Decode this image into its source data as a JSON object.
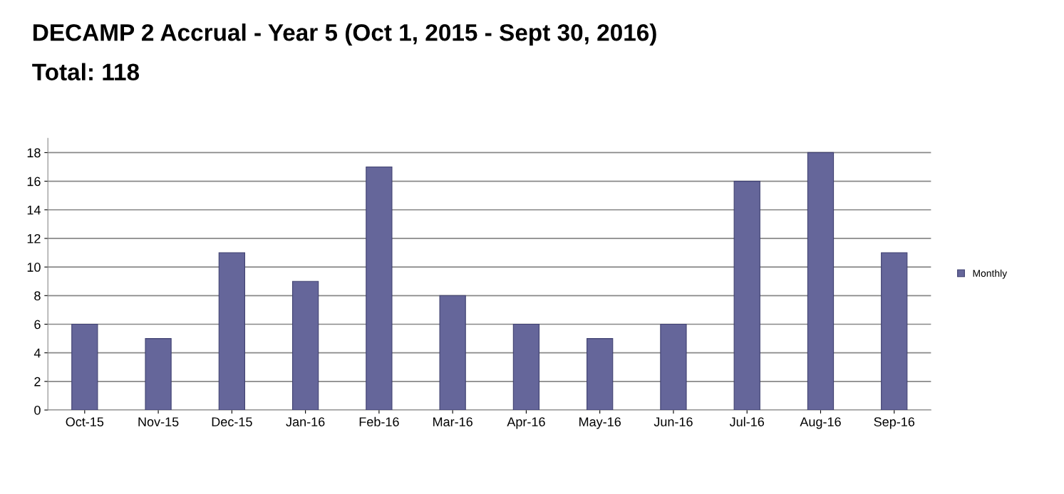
{
  "chart_data": {
    "type": "bar",
    "title": "DECAMP 2 Accrual - Year 5 (Oct 1, 2015 - Sept 30, 2016)",
    "subtitle": "Total: 118",
    "categories": [
      "Oct-15",
      "Nov-15",
      "Dec-15",
      "Jan-16",
      "Feb-16",
      "Mar-16",
      "Apr-16",
      "May-16",
      "Jun-16",
      "Jul-16",
      "Aug-16",
      "Sep-16"
    ],
    "series": [
      {
        "name": "Monthly",
        "color": "#65669a",
        "values": [
          6,
          5,
          11,
          9,
          17,
          8,
          6,
          5,
          6,
          16,
          18,
          11
        ]
      }
    ],
    "ylim": [
      0,
      19
    ],
    "yticks": [
      0,
      2,
      4,
      6,
      8,
      10,
      12,
      14,
      16,
      18
    ],
    "grid": "y",
    "legend": "right"
  }
}
